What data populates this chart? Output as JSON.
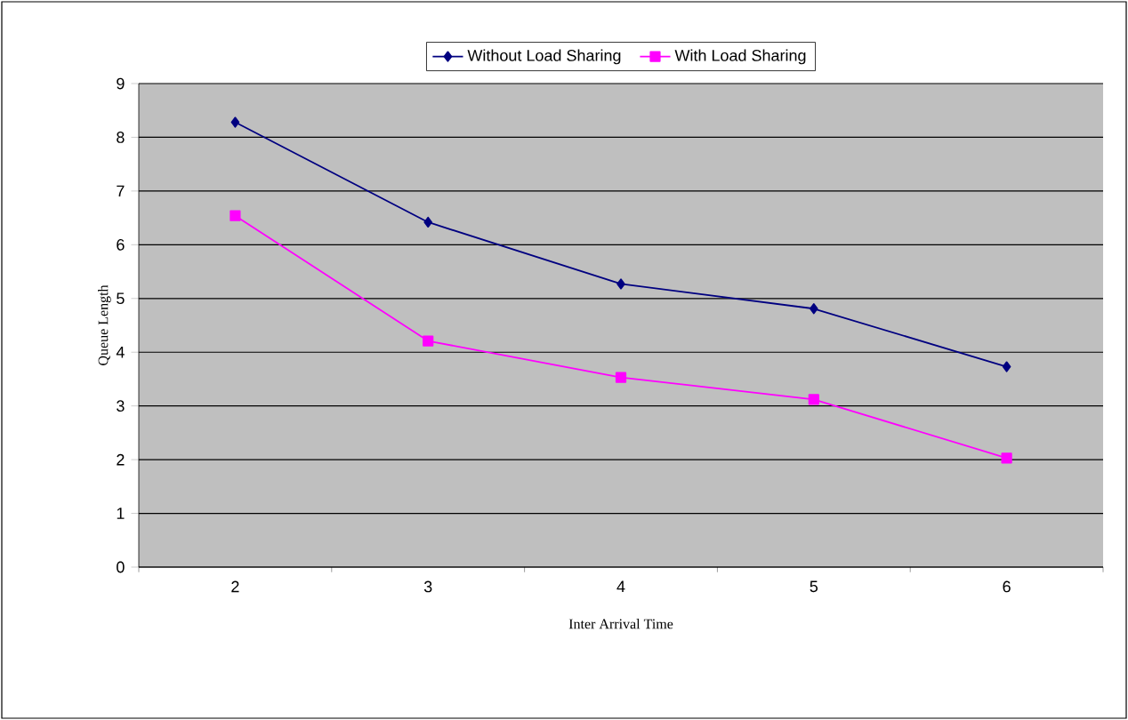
{
  "chart_data": {
    "type": "line",
    "xlabel": "Inter Arrival Time",
    "ylabel": "Queue Length",
    "categories": [
      "2",
      "3",
      "4",
      "5",
      "6"
    ],
    "series": [
      {
        "name": "Without Load Sharing",
        "color": "#000080",
        "marker": "diamond",
        "values": [
          8.28,
          6.42,
          5.27,
          4.81,
          3.73
        ]
      },
      {
        "name": "With Load Sharing",
        "color": "#ff00ff",
        "marker": "square",
        "values": [
          6.54,
          4.21,
          3.53,
          3.12,
          2.03
        ]
      }
    ],
    "ylim": [
      0,
      9
    ],
    "yticks": [
      0,
      1,
      2,
      3,
      4,
      5,
      6,
      7,
      8,
      9
    ],
    "grid": "y",
    "legend": "top"
  }
}
